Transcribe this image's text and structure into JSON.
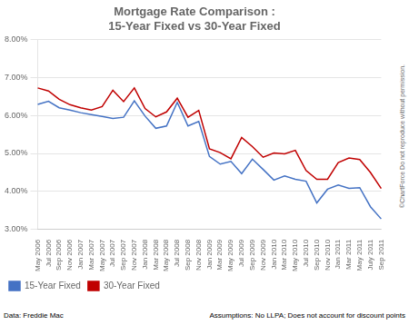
{
  "chart_data": {
    "type": "line",
    "title": "Mortgage Rate Comparison :\n15-Year Fixed vs 30-Year Fixed",
    "annotations": [
      "Data: Freddie Mac",
      "Assumptions:  No LLPA; Does not account for discount points",
      "©ChartForce  Do not reproduce without permission."
    ],
    "categories": [
      "May 2006",
      "Jul 2006",
      "Sep 2006",
      "Nov 2006",
      "Jan 2007",
      "Mar 2007",
      "May 2007",
      "Jul 2007",
      "Sep 2007",
      "Nov 2007",
      "Jan 2008",
      "Mar 2008",
      "May 2008",
      "Jul 2008",
      "Sep 2008",
      "Nov 2008",
      "Jan 2009",
      "Mar 2009",
      "May 2009",
      "Jul 2009",
      "Sep 2009",
      "Nov 2009",
      "Jan 2010",
      "Mar 2010",
      "May 2010",
      "Jul 2010",
      "Sep 2010",
      "Nov 2010",
      "Jan 2011",
      "Mar 2011",
      "May 2011",
      "July 2011",
      "Sep 2011"
    ],
    "series": [
      {
        "name": "15-Year Fixed",
        "color": "#4472C4",
        "values": [
          6.29,
          6.37,
          6.2,
          6.14,
          6.07,
          6.02,
          5.97,
          5.92,
          5.95,
          6.38,
          5.98,
          5.66,
          5.72,
          6.34,
          5.72,
          5.84,
          4.92,
          4.72,
          4.79,
          4.47,
          4.85,
          4.58,
          4.3,
          4.41,
          4.32,
          4.27,
          3.7,
          4.06,
          4.17,
          4.08,
          4.1,
          3.6,
          3.28
        ]
      },
      {
        "name": "30-Year Fixed",
        "color": "#C00000",
        "values": [
          6.72,
          6.64,
          6.42,
          6.28,
          6.2,
          6.14,
          6.23,
          6.66,
          6.36,
          6.72,
          6.18,
          5.96,
          6.09,
          6.45,
          5.95,
          6.13,
          5.12,
          5.02,
          4.86,
          5.42,
          5.18,
          4.9,
          5.01,
          4.99,
          5.08,
          4.55,
          4.32,
          4.32,
          4.76,
          4.88,
          4.84,
          4.5,
          4.08
        ]
      }
    ],
    "ylim": [
      3.0,
      8.0
    ],
    "yticks": [
      {
        "value": 3.0,
        "label": "3.00%"
      },
      {
        "value": 4.0,
        "label": "4.00%"
      },
      {
        "value": 5.0,
        "label": "5.00%"
      },
      {
        "value": 6.0,
        "label": "6.00%"
      },
      {
        "value": 7.0,
        "label": "7.00%"
      },
      {
        "value": 8.0,
        "label": "8.00%"
      }
    ],
    "grid": true,
    "legend": "lower left"
  }
}
